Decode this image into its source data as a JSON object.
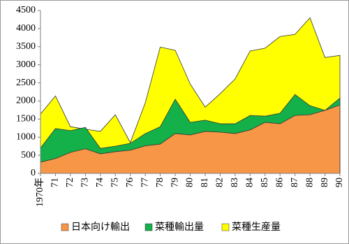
{
  "chart_data": {
    "type": "area",
    "categories": [
      "1970年",
      "71",
      "72",
      "73",
      "74",
      "75",
      "76",
      "77",
      "78",
      "79",
      "80",
      "81",
      "82",
      "83",
      "84",
      "85",
      "86",
      "87",
      "88",
      "89",
      "90"
    ],
    "series": [
      {
        "name": "菜種生産量",
        "color": "#ffff00",
        "values": [
          1640,
          2140,
          1290,
          1220,
          1160,
          1620,
          850,
          1950,
          3490,
          3400,
          2470,
          1830,
          2200,
          2610,
          3380,
          3460,
          3780,
          3840,
          4300,
          3200,
          3260
        ]
      },
      {
        "name": "菜種輸出量",
        "color": "#14b04a",
        "values": [
          700,
          1240,
          1180,
          1270,
          690,
          750,
          830,
          1100,
          1290,
          2050,
          1410,
          1470,
          1370,
          1370,
          1600,
          1580,
          1660,
          2180,
          1870,
          1740,
          2080
        ]
      },
      {
        "name": "日本向け輸出",
        "color": "#f79646",
        "values": [
          310,
          410,
          580,
          680,
          540,
          600,
          640,
          760,
          810,
          1100,
          1060,
          1160,
          1140,
          1100,
          1200,
          1410,
          1370,
          1600,
          1620,
          1740,
          1890
        ]
      }
    ],
    "legend_order": [
      2,
      1,
      0
    ],
    "ylim": [
      0,
      4500
    ],
    "yticks": [
      0,
      500,
      1000,
      1500,
      2000,
      2500,
      3000,
      3500,
      4000,
      4500
    ],
    "grid": false,
    "legend": "bottom"
  }
}
